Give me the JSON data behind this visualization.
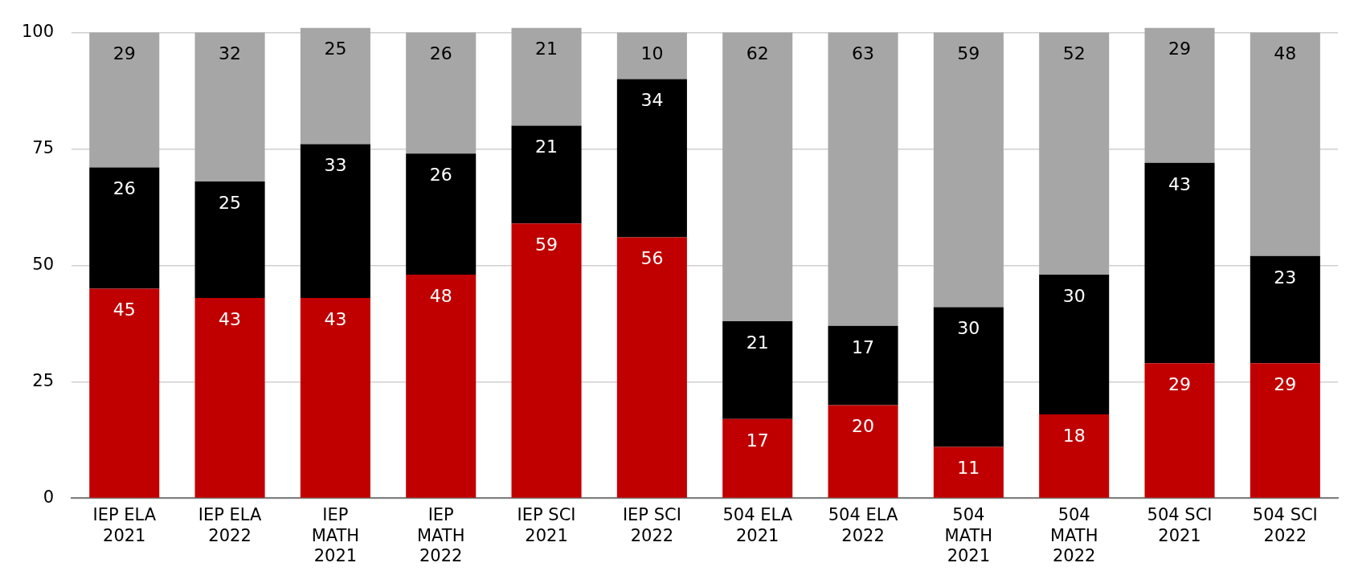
{
  "chart_data": {
    "type": "bar",
    "stacked": true,
    "data_labels": true,
    "grid": "y",
    "legend": false,
    "categories": [
      "IEP ELA 2021",
      "IEP ELA 2022",
      "IEP MATH 2021",
      "IEP MATH 2022",
      "IEP SCI 2021",
      "IEP SCI 2022",
      "504 ELA 2021",
      "504 ELA 2022",
      "504 MATH 2021",
      "504 MATH 2022",
      "504 SCI 2021",
      "504 SCI 2022"
    ],
    "series": [
      {
        "color": "#c00000",
        "values": [
          45,
          43,
          43,
          48,
          59,
          56,
          17,
          20,
          11,
          18,
          29,
          29
        ]
      },
      {
        "color": "#000000",
        "values": [
          26,
          25,
          33,
          26,
          21,
          34,
          21,
          17,
          30,
          30,
          43,
          23
        ]
      },
      {
        "color": "#a6a6a6",
        "values": [
          29,
          32,
          25,
          26,
          21,
          10,
          62,
          63,
          59,
          52,
          29,
          48
        ]
      }
    ],
    "ylim": [
      0,
      101
    ],
    "yticks": [
      0,
      25,
      50,
      75,
      100
    ]
  }
}
